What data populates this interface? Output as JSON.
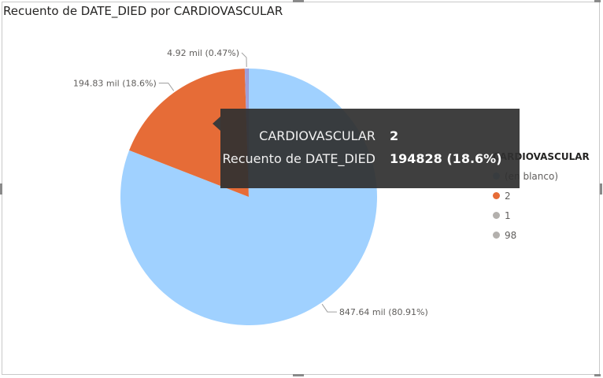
{
  "title": "Recuento de DATE_DIED por CARDIOVASCULAR",
  "chart_data": {
    "type": "pie",
    "title": "Recuento de DATE_DIED por CARDIOVASCULAR",
    "legend_title": "CARDIOVASCULAR",
    "legend_position": "right",
    "slices": [
      {
        "category": "(en blanco)",
        "value": 847640,
        "label": "847.64 mil (80.91%)",
        "color": "#a0d1ff"
      },
      {
        "category": "2",
        "value": 194828,
        "label": "194.83 mil (18.6%)",
        "color": "#e66c37"
      },
      {
        "category": "1",
        "value": 4920,
        "label": "4.92 mil (0.47%)",
        "color": "#a0a0d8"
      },
      {
        "category": "98",
        "value": 340,
        "label": "",
        "color": "#6b5fae"
      }
    ],
    "legend_items": [
      {
        "label": "(en blanco)",
        "color": "#a0d1ff"
      },
      {
        "label": "2",
        "color": "#e66c37"
      },
      {
        "label": "1",
        "color": "#b3b0ad"
      },
      {
        "label": "98",
        "color": "#b3b0ad"
      }
    ]
  },
  "tooltip": {
    "rows": [
      {
        "label": "CARDIOVASCULAR",
        "value": "2"
      },
      {
        "label": "Recuento de DATE_DIED",
        "value": "194828 (18.6%)"
      }
    ]
  }
}
